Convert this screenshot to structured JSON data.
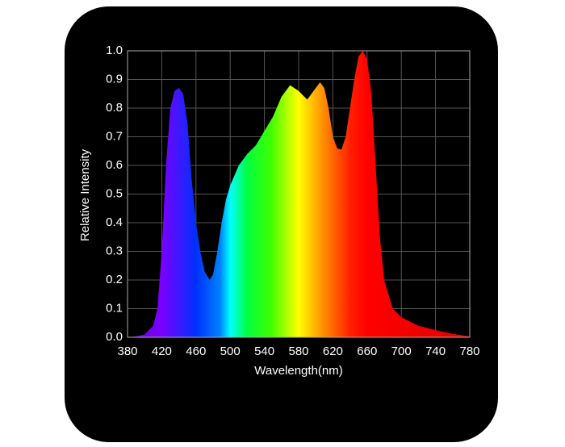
{
  "chart_data": {
    "type": "area",
    "xlabel": "Wavelength(nm)",
    "ylabel": "Relative Intensity",
    "x": [
      380,
      390,
      400,
      410,
      415,
      420,
      425,
      430,
      435,
      440,
      445,
      450,
      455,
      460,
      465,
      470,
      476,
      480,
      485,
      490,
      495,
      500,
      510,
      520,
      530,
      540,
      550,
      560,
      570,
      580,
      590,
      600,
      605,
      610,
      615,
      620,
      625,
      630,
      635,
      640,
      645,
      650,
      655,
      660,
      665,
      670,
      675,
      680,
      690,
      700,
      720,
      740,
      760,
      780
    ],
    "y": [
      0,
      0.003,
      0.01,
      0.04,
      0.1,
      0.3,
      0.6,
      0.8,
      0.86,
      0.87,
      0.85,
      0.75,
      0.55,
      0.4,
      0.3,
      0.23,
      0.2,
      0.22,
      0.3,
      0.4,
      0.48,
      0.53,
      0.6,
      0.64,
      0.67,
      0.72,
      0.77,
      0.84,
      0.88,
      0.86,
      0.83,
      0.87,
      0.89,
      0.87,
      0.8,
      0.7,
      0.66,
      0.655,
      0.7,
      0.8,
      0.9,
      0.98,
      1.0,
      0.97,
      0.85,
      0.6,
      0.35,
      0.2,
      0.1,
      0.07,
      0.04,
      0.025,
      0.012,
      0.003
    ],
    "xlim": [
      380,
      780
    ],
    "xticks": [
      380,
      420,
      460,
      500,
      540,
      580,
      620,
      660,
      700,
      740,
      780
    ],
    "ylim": [
      0,
      1
    ],
    "yticks": [
      {
        "value": 0,
        "label": "0.0"
      },
      0.1,
      0.2,
      0.3,
      0.4,
      0.5,
      0.6,
      0.7,
      0.8,
      0.9,
      {
        "value": 1,
        "label": "1.0"
      }
    ],
    "grid": true
  }
}
